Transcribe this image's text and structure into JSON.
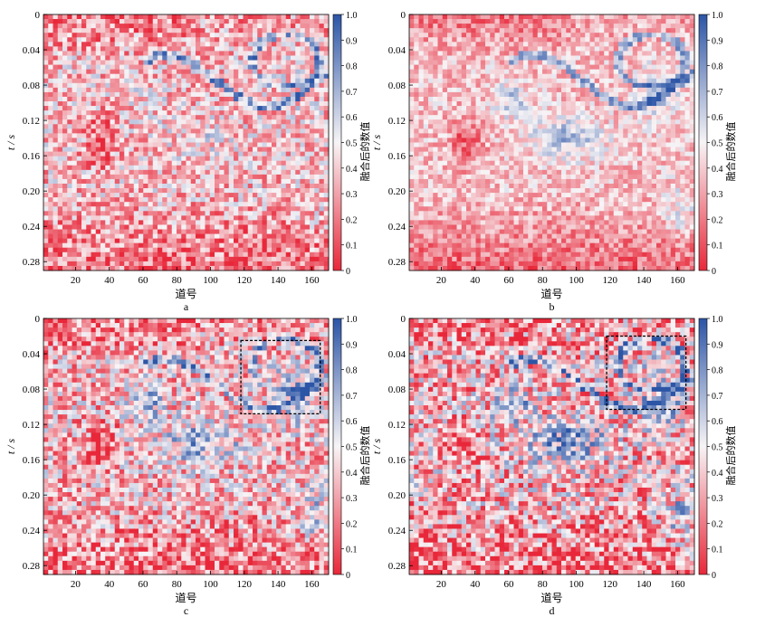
{
  "colors": {
    "low": "#e8283a",
    "mid": "#f7f4f6",
    "high": "#2c55a6",
    "box": "#000000"
  },
  "chart_data": [
    {
      "type": "heatmap",
      "panel_label": "a",
      "xlabel": "道号",
      "ylabel": "t / s",
      "colorbar_label": "融合后的数值",
      "xlim": [
        1,
        170
      ],
      "ylim": [
        0,
        0.29
      ],
      "x_ticks": [
        20,
        40,
        60,
        80,
        100,
        120,
        140,
        160
      ],
      "y_ticks": [
        0,
        0.04,
        0.08,
        0.12,
        0.16,
        0.2,
        0.24,
        0.28
      ],
      "y_tick_labels": [
        "0",
        "0.04",
        "0.08",
        "0.12",
        "0.16",
        "0.20",
        "0.24",
        "0.28"
      ],
      "colorbar_range": [
        0,
        1
      ],
      "colorbar_ticks": [
        "0",
        "0.1",
        "0.2",
        "0.3",
        "0.4",
        "0.5",
        "0.6",
        "0.7",
        "0.8",
        "0.9",
        "1.0"
      ],
      "dashed_box": null
    },
    {
      "type": "heatmap",
      "panel_label": "b",
      "xlabel": "道号",
      "ylabel": "t / s",
      "colorbar_label": "融合后的数值",
      "xlim": [
        1,
        170
      ],
      "ylim": [
        0,
        0.29
      ],
      "x_ticks": [
        20,
        40,
        60,
        80,
        100,
        120,
        140,
        160
      ],
      "y_ticks": [
        0,
        0.04,
        0.08,
        0.12,
        0.16,
        0.2,
        0.24,
        0.28
      ],
      "y_tick_labels": [
        "0",
        "0.04",
        "0.08",
        "0.12",
        "0.16",
        "0.20",
        "0.24",
        "0.28"
      ],
      "colorbar_range": [
        0,
        1
      ],
      "colorbar_ticks": [
        "0",
        "0.1",
        "0.2",
        "0.3",
        "0.4",
        "0.5",
        "0.6",
        "0.7",
        "0.8",
        "0.9",
        "1.0"
      ],
      "dashed_box": null
    },
    {
      "type": "heatmap",
      "panel_label": "c",
      "xlabel": "道号",
      "ylabel": "t / s",
      "colorbar_label": "融合后的数值",
      "xlim": [
        1,
        170
      ],
      "ylim": [
        0,
        0.29
      ],
      "x_ticks": [
        20,
        40,
        60,
        80,
        100,
        120,
        140,
        160
      ],
      "y_ticks": [
        0,
        0.04,
        0.08,
        0.12,
        0.16,
        0.2,
        0.24,
        0.28
      ],
      "y_tick_labels": [
        "0",
        "0.04",
        "0.08",
        "0.12",
        "0.16",
        "0.20",
        "0.24",
        "0.28"
      ],
      "colorbar_range": [
        0,
        1
      ],
      "colorbar_ticks": [
        "0",
        "0.1",
        "0.2",
        "0.3",
        "0.4",
        "0.5",
        "0.6",
        "0.7",
        "0.8",
        "0.9",
        "1.0"
      ],
      "dashed_box": {
        "x": [
          118,
          165
        ],
        "t": [
          0.025,
          0.108
        ]
      }
    },
    {
      "type": "heatmap",
      "panel_label": "d",
      "xlabel": "道号",
      "ylabel": "t / s",
      "colorbar_label": "融合后的数值",
      "xlim": [
        1,
        170
      ],
      "ylim": [
        0,
        0.29
      ],
      "x_ticks": [
        20,
        40,
        60,
        80,
        100,
        120,
        140,
        160
      ],
      "y_ticks": [
        0,
        0.04,
        0.08,
        0.12,
        0.16,
        0.2,
        0.24,
        0.28
      ],
      "y_tick_labels": [
        "0",
        "0.04",
        "0.08",
        "0.12",
        "0.16",
        "0.20",
        "0.24",
        "0.28"
      ],
      "colorbar_range": [
        0,
        1
      ],
      "colorbar_ticks": [
        "0",
        "0.1",
        "0.2",
        "0.3",
        "0.4",
        "0.5",
        "0.6",
        "0.7",
        "0.8",
        "0.9",
        "1.0"
      ],
      "dashed_box": {
        "x": [
          118,
          165
        ],
        "t": [
          0.02,
          0.103
        ]
      }
    }
  ]
}
